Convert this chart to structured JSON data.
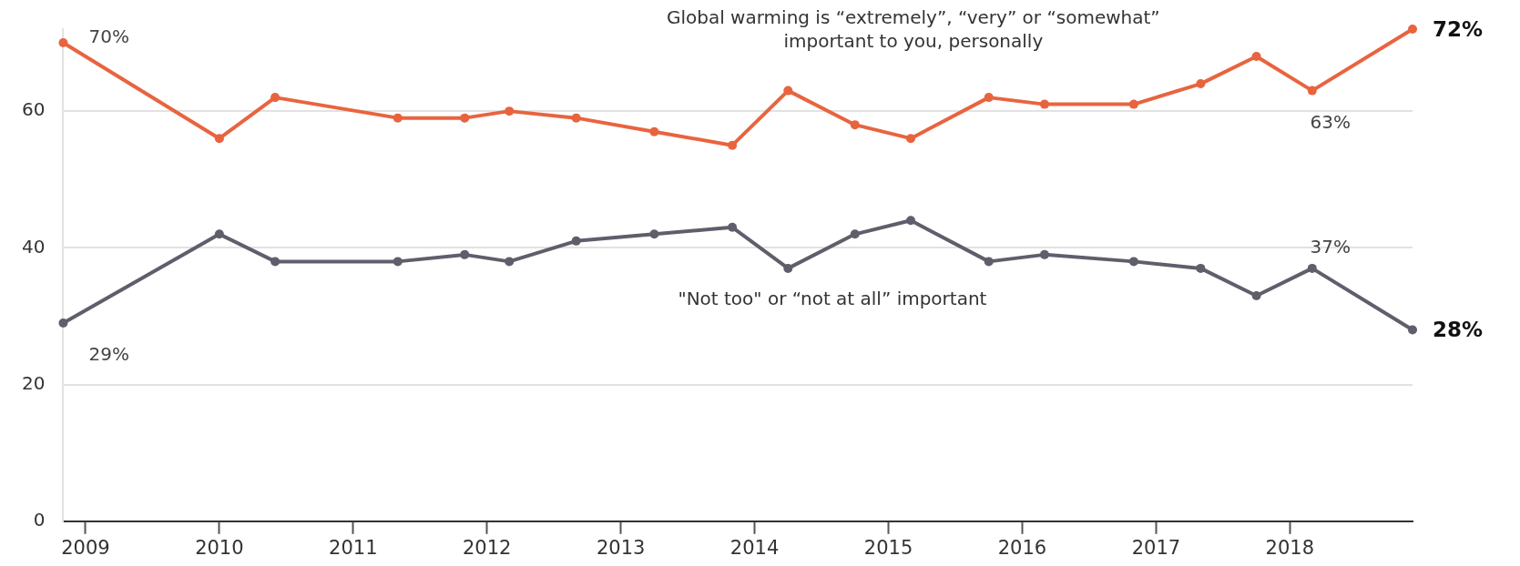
{
  "chart_data": {
    "type": "line",
    "x": [
      "2008-11",
      "2010-01",
      "2010-06",
      "2011-05",
      "2011-11",
      "2012-03",
      "2012-09",
      "2013-04",
      "2013-11",
      "2014-04",
      "2014-10",
      "2015-03",
      "2015-10",
      "2016-03",
      "2016-11",
      "2017-05",
      "2017-10",
      "2018-03",
      "2018-12"
    ],
    "xlim": [
      "2008-11",
      "2018-12"
    ],
    "xticks": [
      "2009",
      "2010",
      "2011",
      "2012",
      "2013",
      "2014",
      "2015",
      "2016",
      "2017",
      "2018"
    ],
    "ylim": [
      0,
      72
    ],
    "yticks": [
      0,
      20,
      40,
      60
    ],
    "grid": "y",
    "legend": false,
    "marker": "circle",
    "line_style": "solid",
    "series": [
      {
        "name": "Global warming is “extremely”, “very” or “somewhat” important to you, personally",
        "color": "#e8643f",
        "values": [
          70,
          56,
          62,
          59,
          59,
          60,
          59,
          57,
          55,
          63,
          58,
          56,
          62,
          61,
          61,
          64,
          68,
          63,
          72
        ],
        "value_labels": [
          "70%",
          null,
          null,
          null,
          null,
          null,
          null,
          null,
          null,
          null,
          null,
          null,
          null,
          null,
          null,
          null,
          null,
          "63%",
          "72%"
        ]
      },
      {
        "name": "\"Not too\" or “not at all” important",
        "color": "#5f5e6b",
        "values": [
          29,
          42,
          38,
          38,
          39,
          38,
          41,
          42,
          43,
          37,
          42,
          44,
          38,
          39,
          38,
          37,
          33,
          37,
          28
        ],
        "value_labels": [
          "29%",
          null,
          null,
          null,
          null,
          null,
          null,
          null,
          null,
          null,
          null,
          null,
          null,
          null,
          null,
          null,
          null,
          "37%",
          "28%"
        ]
      }
    ]
  }
}
